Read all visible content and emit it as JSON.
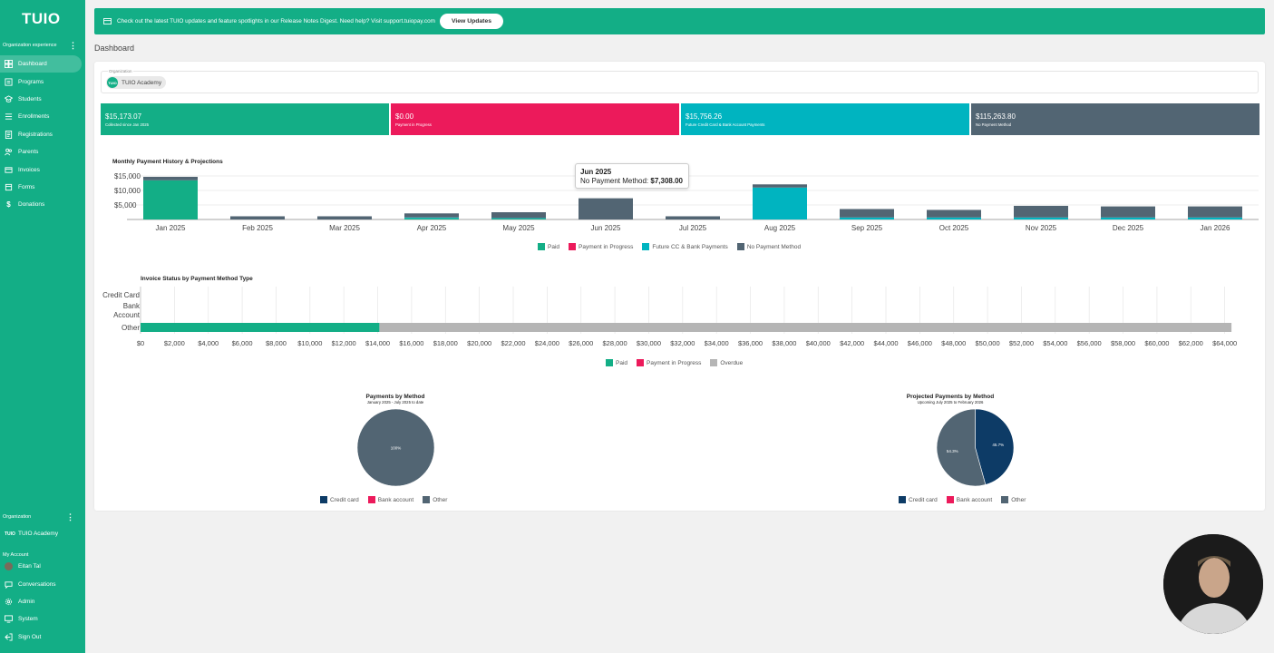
{
  "app": {
    "logo": "TUIO"
  },
  "sidebar": {
    "section_label": "Organization experience",
    "items": [
      {
        "label": "Dashboard",
        "icon": "dashboard-icon",
        "active": true
      },
      {
        "label": "Programs",
        "icon": "programs-icon"
      },
      {
        "label": "Students",
        "icon": "students-icon"
      },
      {
        "label": "Enrollments",
        "icon": "enrollments-icon"
      },
      {
        "label": "Registrations",
        "icon": "registrations-icon"
      },
      {
        "label": "Parents",
        "icon": "parents-icon"
      },
      {
        "label": "Invoices",
        "icon": "invoices-icon"
      },
      {
        "label": "Forms",
        "icon": "forms-icon"
      },
      {
        "label": "Donations",
        "icon": "donations-icon"
      }
    ],
    "org_section_label": "Organization",
    "org_name": "TUIO Academy",
    "org_logo": "TUIO",
    "account_label": "My Account",
    "user_name": "Eitan Tal",
    "account_items": [
      {
        "label": "Conversations",
        "icon": "chat-icon"
      },
      {
        "label": "Admin",
        "icon": "gear-icon"
      },
      {
        "label": "System",
        "icon": "monitor-icon"
      },
      {
        "label": "Sign Out",
        "icon": "sign-out-icon"
      }
    ]
  },
  "banner": {
    "text": "Check out the latest TUIO updates and feature spotlights in our Release Notes Digest. Need help? Visit support.tuiopay.com",
    "button": "View Updates"
  },
  "page": {
    "title": "Dashboard"
  },
  "org_select": {
    "label": "Organization",
    "chip": "TUIO Academy",
    "chip_logo": "TUIO"
  },
  "stats": [
    {
      "amount": "$15,173.07",
      "label": "Collected since Jan 2025",
      "color": "#13ae86"
    },
    {
      "amount": "$0.00",
      "label": "Payment in Progress",
      "color": "#ec1a5b"
    },
    {
      "amount": "$15,756.26",
      "label": "Future Credit Card & Bank Account Payments",
      "color": "#00b4c0"
    },
    {
      "amount": "$115,263.80",
      "label": "No Payment Method",
      "color": "#526573"
    }
  ],
  "colors": {
    "paid": "#13ae86",
    "progress": "#ec1a5b",
    "future": "#00b4c0",
    "none": "#526573",
    "overdue": "#b5b5b5",
    "credit": "#0d3b66"
  },
  "tooltip": {
    "title": "Jun 2025",
    "label": "No Payment Method:",
    "value": "$7,308.00"
  },
  "chart_data": [
    {
      "type": "bar",
      "stacked": true,
      "title": "Monthly Payment History & Projections",
      "categories": [
        "Jan 2025",
        "Feb 2025",
        "Mar 2025",
        "Apr 2025",
        "May 2025",
        "Jun 2025",
        "Jul 2025",
        "Aug 2025",
        "Sep 2025",
        "Oct 2025",
        "Nov 2025",
        "Dec 2025",
        "Jan 2026"
      ],
      "y_ticks": [
        "$15,000",
        "$10,000",
        "$5,000"
      ],
      "ylim": [
        0,
        15000
      ],
      "series": [
        {
          "name": "Paid",
          "values": [
            13500,
            0,
            0,
            400,
            300,
            0,
            0,
            0,
            0,
            0,
            0,
            0,
            0
          ]
        },
        {
          "name": "Payment in Progress",
          "values": [
            0,
            0,
            0,
            0,
            0,
            0,
            0,
            0,
            0,
            0,
            0,
            0,
            0
          ]
        },
        {
          "name": "Future CC & Bank Payments",
          "values": [
            0,
            0,
            0,
            300,
            200,
            0,
            0,
            11000,
            700,
            700,
            700,
            700,
            700
          ]
        },
        {
          "name": "No Payment Method",
          "values": [
            1200,
            1100,
            1100,
            1400,
            2000,
            7308,
            1100,
            1100,
            2900,
            2600,
            4000,
            3800,
            3800
          ]
        }
      ],
      "legend": "bottom"
    },
    {
      "type": "bar",
      "orientation": "horizontal",
      "stacked": true,
      "title": "Invoice Status by Payment Method Type",
      "categories": [
        "Credit Card",
        "Bank Account",
        "Other"
      ],
      "x_ticks": [
        "$0",
        "$2,000",
        "$4,000",
        "$6,000",
        "$8,000",
        "$10,000",
        "$12,000",
        "$14,000",
        "$16,000",
        "$18,000",
        "$20,000",
        "$22,000",
        "$24,000",
        "$26,000",
        "$28,000",
        "$30,000",
        "$32,000",
        "$34,000",
        "$36,000",
        "$38,000",
        "$40,000",
        "$42,000",
        "$44,000",
        "$46,000",
        "$48,000",
        "$50,000",
        "$52,000",
        "$54,000",
        "$56,000",
        "$58,000",
        "$60,000",
        "$62,000",
        "$64,000"
      ],
      "xlim": [
        0,
        66000
      ],
      "series": [
        {
          "name": "Paid",
          "values": [
            0,
            0,
            14100
          ]
        },
        {
          "name": "Payment in Progress",
          "values": [
            0,
            0,
            0
          ]
        },
        {
          "name": "Overdue",
          "values": [
            0,
            0,
            50300
          ]
        }
      ],
      "legend": "bottom"
    },
    {
      "type": "pie",
      "title": "Payments by Method",
      "subtitle": "January 2025 - July 2025 to date",
      "labels": [
        "Credit card",
        "Bank account",
        "Other"
      ],
      "values": [
        0,
        0,
        100
      ],
      "value_labels": [
        "",
        "",
        "100%"
      ]
    },
    {
      "type": "pie",
      "title": "Projected Payments by Method",
      "subtitle": "Upcoming July 2025 to February 2026",
      "labels": [
        "Credit card",
        "Bank account",
        "Other"
      ],
      "values": [
        45.7,
        0,
        54.3
      ],
      "value_labels": [
        "45.7%",
        "",
        "54.3%"
      ]
    }
  ]
}
